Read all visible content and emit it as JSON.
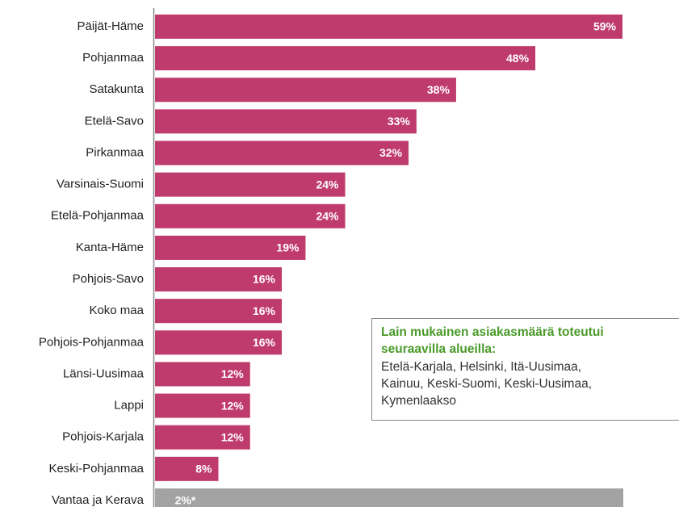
{
  "chart_data": {
    "type": "bar",
    "orientation": "horizontal",
    "categories": [
      "Päijät-Häme",
      "Pohjanmaa",
      "Satakunta",
      "Etelä-Savo",
      "Pirkanmaa",
      "Varsinais-Suomi",
      "Etelä-Pohjanmaa",
      "Kanta-Häme",
      "Pohjois-Savo",
      "Koko maa",
      "Pohjois-Pohjanmaa",
      "Länsi-Uusimaa",
      "Lappi",
      "Pohjois-Karjala",
      "Keski-Pohjanmaa",
      "Vantaa ja Kerava"
    ],
    "values": [
      59,
      48,
      38,
      33,
      32,
      24,
      24,
      19,
      16,
      16,
      16,
      12,
      12,
      12,
      8,
      2
    ],
    "value_labels": [
      "59%",
      "48%",
      "38%",
      "33%",
      "32%",
      "24%",
      "24%",
      "19%",
      "16%",
      "16%",
      "16%",
      "12%",
      "12%",
      "12%",
      "8%",
      "2%*"
    ],
    "colors": [
      "#bf3b6d",
      "#bf3b6d",
      "#bf3b6d",
      "#bf3b6d",
      "#bf3b6d",
      "#bf3b6d",
      "#bf3b6d",
      "#bf3b6d",
      "#bf3b6d",
      "#bf3b6d",
      "#bf3b6d",
      "#bf3b6d",
      "#bf3b6d",
      "#bf3b6d",
      "#bf3b6d",
      "#a3a3a3"
    ],
    "annotation": {
      "title_lines": [
        "Lain mukainen asiakasmäärä toteutui",
        "seuraavilla alueilla:"
      ],
      "lines": [
        "Etelä-Karjala, Helsinki, Itä-Uusimaa,",
        "Kainuu, Keski-Suomi, Keski-Uusimaa,",
        "Kymenlaakso"
      ]
    }
  }
}
